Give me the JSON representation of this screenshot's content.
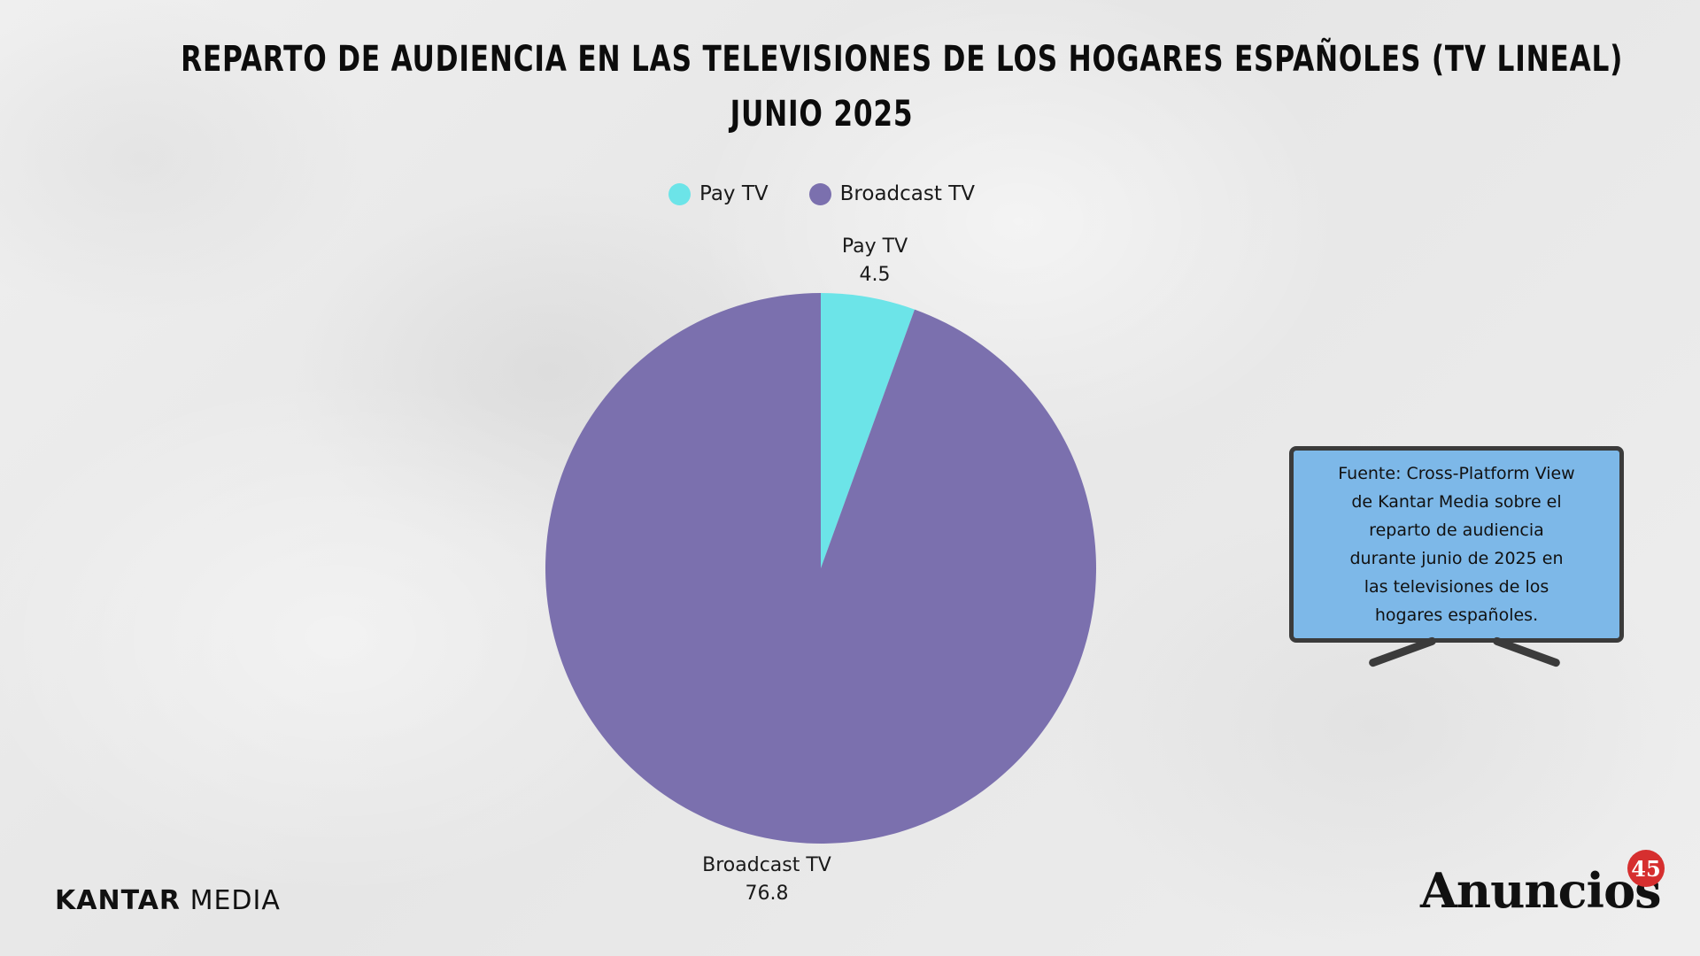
{
  "title": {
    "line1": "REPARTO DE AUDIENCIA EN LAS TELEVISIONES DE LOS HOGARES ESPAÑOLES (TV LINEAL)",
    "line2": "JUNIO 2025"
  },
  "chart_data": {
    "type": "pie",
    "title": "REPARTO DE AUDIENCIA EN LAS TELEVISIONES DE LOS HOGARES ESPAÑOLES (TV LINEAL) JUNIO 2025",
    "categories": [
      "Pay TV",
      "Broadcast TV"
    ],
    "values": [
      4.5,
      76.8
    ],
    "colors": [
      "#6ce4e8",
      "#7b70ae"
    ],
    "legend_position": "top",
    "data_labels": true
  },
  "legend": {
    "items": [
      {
        "label": "Pay TV",
        "color": "#6ce4e8"
      },
      {
        "label": "Broadcast TV",
        "color": "#7b70ae"
      }
    ]
  },
  "source_box": {
    "text": "Fuente: Cross-Platform View de Kantar Media sobre el reparto de audiencia durante junio de 2025 en las televisiones de los hogares españoles."
  },
  "branding": {
    "left_bold": "KANTAR",
    "left_regular": " MEDIA",
    "right_word": "Anuncios",
    "right_badge": "45"
  },
  "colors": {
    "screen": "#7db8e8",
    "frame": "#3b3b3b",
    "badge": "#d62f2f"
  }
}
